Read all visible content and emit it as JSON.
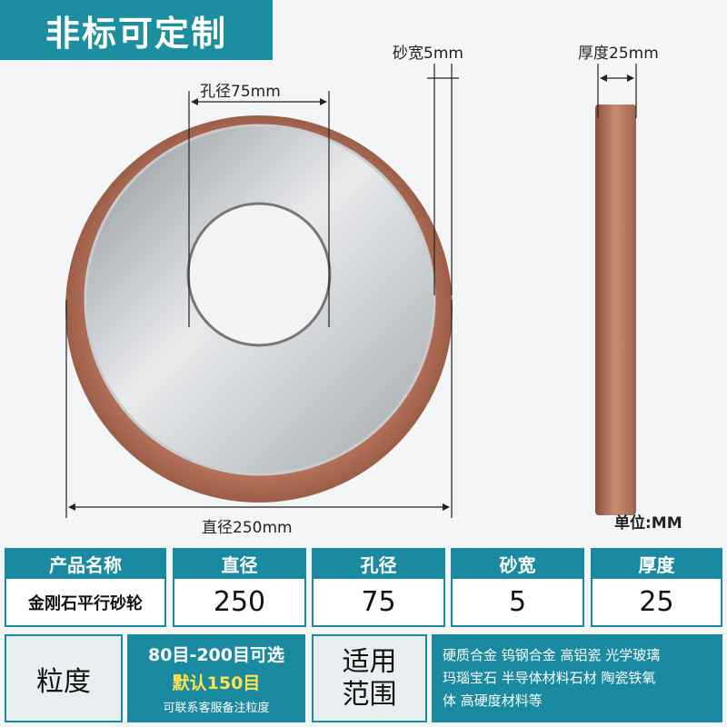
{
  "banner": "非标可定制",
  "dimensions": {
    "hole": "孔径75mm",
    "sand_width": "砂宽5mm",
    "thickness": "厚度25mm",
    "diameter": "直径250mm",
    "unit": "单位:MM"
  },
  "table": {
    "headers": [
      "产品名称",
      "直径",
      "孔径",
      "砂宽",
      "厚度"
    ],
    "rows": [
      [
        "金刚石平行砂轮",
        250,
        75,
        5,
        25
      ]
    ]
  },
  "grit": {
    "label": "粒度",
    "range": "80目-200目可选",
    "default": "默认150目",
    "note": "可联系客服备注粒度"
  },
  "applications": {
    "label": [
      "适用",
      "范围"
    ],
    "lines": [
      "硬质合金 钨钢合金 高铝瓷 光学玻璃",
      "玛瑙宝石 半导体材料石材 陶瓷铁氧",
      "体 高硬度材料等"
    ]
  }
}
